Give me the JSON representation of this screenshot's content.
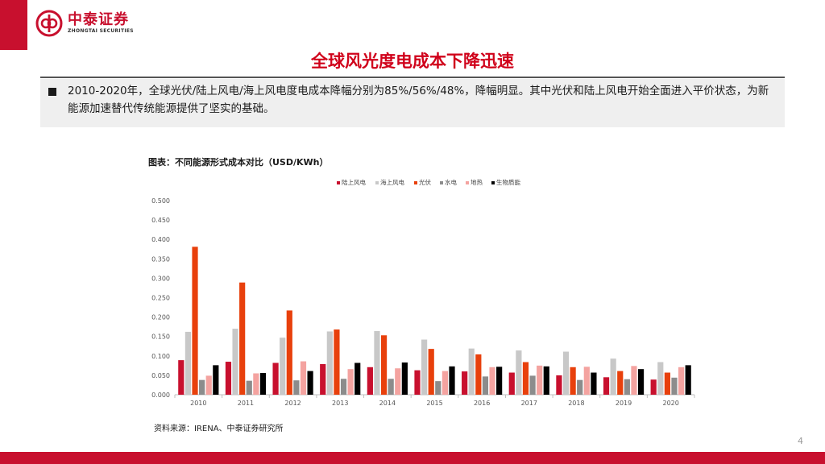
{
  "header": {
    "logo_cn": "中泰证券",
    "logo_en": "ZHONGTAI SECURITIES",
    "accent_color": "#c8102e",
    "logo_icon": "zhongtai-logo-icon"
  },
  "page_title": "全球风光度电成本下降迅速",
  "summary": {
    "text": "2010-2020年，全球光伏/陆上风电/海上风电度电成本降幅分别为85%/56%/48%，降幅明显。其中光伏和陆上风电开始全面进入平价状态，为新能源加速替代传统能源提供了坚实的基础。"
  },
  "chart_caption": "图表：不同能源形式成本对比（USD/KWh）",
  "chart_data": {
    "type": "bar",
    "categories": [
      "2010",
      "2011",
      "2012",
      "2013",
      "2014",
      "2015",
      "2016",
      "2017",
      "2018",
      "2019",
      "2020"
    ],
    "series": [
      {
        "name": "陆上风电",
        "color": "#c8102e",
        "values": [
          0.089,
          0.085,
          0.082,
          0.079,
          0.071,
          0.063,
          0.06,
          0.057,
          0.05,
          0.045,
          0.039
        ]
      },
      {
        "name": "海上风电",
        "color": "#c8c8c8",
        "values": [
          0.162,
          0.17,
          0.147,
          0.163,
          0.164,
          0.142,
          0.119,
          0.114,
          0.111,
          0.093,
          0.084
        ]
      },
      {
        "name": "光伏",
        "color": "#e8400c",
        "values": [
          0.381,
          0.289,
          0.217,
          0.168,
          0.153,
          0.118,
          0.104,
          0.084,
          0.071,
          0.061,
          0.057
        ]
      },
      {
        "name": "水电",
        "color": "#8c8c8c",
        "values": [
          0.038,
          0.036,
          0.037,
          0.041,
          0.041,
          0.035,
          0.047,
          0.049,
          0.038,
          0.04,
          0.044
        ]
      },
      {
        "name": "地热",
        "color": "#f4a3a0",
        "values": [
          0.049,
          0.055,
          0.086,
          0.066,
          0.068,
          0.061,
          0.071,
          0.075,
          0.072,
          0.074,
          0.071
        ]
      },
      {
        "name": "生物质能",
        "color": "#000000",
        "values": [
          0.076,
          0.056,
          0.061,
          0.082,
          0.083,
          0.073,
          0.072,
          0.073,
          0.057,
          0.066,
          0.076
        ]
      }
    ],
    "ylim": [
      0,
      0.5
    ],
    "yticks": [
      "0.000",
      "0.050",
      "0.100",
      "0.150",
      "0.200",
      "0.250",
      "0.300",
      "0.350",
      "0.400",
      "0.450",
      "0.500"
    ],
    "legend_position": "top",
    "grid": false
  },
  "source_note": "资料来源：IRENA、中泰证券研究所",
  "page_number": "4"
}
